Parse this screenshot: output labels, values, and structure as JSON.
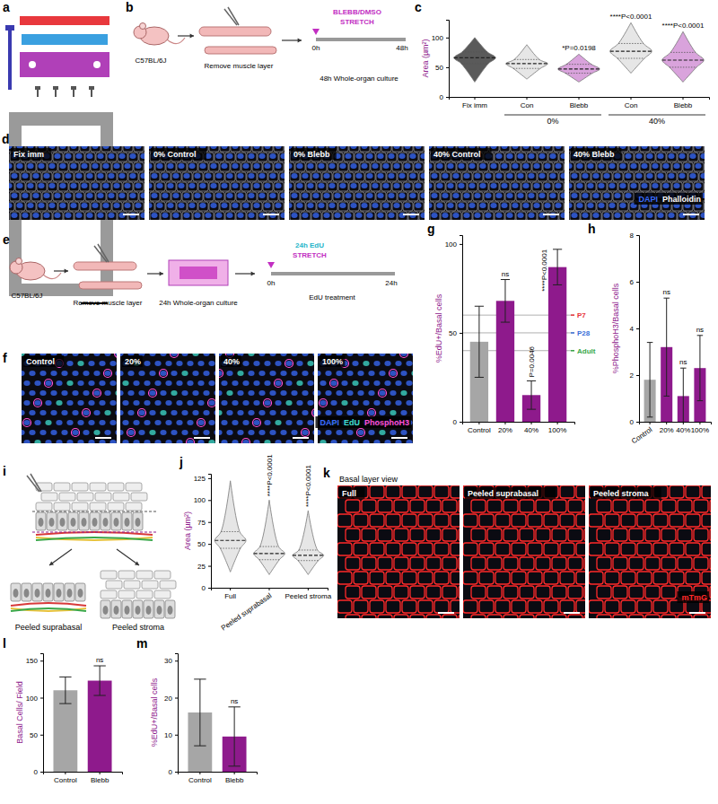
{
  "schematics": {
    "a": {
      "letter": "a"
    },
    "b": {
      "letter": "b",
      "mouse": "C57BL/6J",
      "step": "Remove muscle layer",
      "treatment": "BLEBB/DMSO",
      "stretch": "STRETCH",
      "t0": "0h",
      "t1": "48h",
      "culture": "48h Whole-organ culture"
    },
    "e": {
      "letter": "e",
      "mouse": "C57BL/6J",
      "step": "Remove muscle layer",
      "culture": "24h Whole-organ culture",
      "treatment": "24h EdU",
      "stretch": "STRETCH",
      "t0": "0h",
      "t1": "24h",
      "note": "EdU treatment"
    },
    "i": {
      "letter": "i",
      "labels": [
        "Peeled suprabasal",
        "Peeled stroma"
      ]
    }
  },
  "images": [
    {
      "letter": "d",
      "labels": [
        "Fix imm",
        "0% Control",
        "0% Blebb",
        "40% Control",
        "40% Blebb"
      ],
      "legend": [
        {
          "text": "DAPI",
          "color": "#3a6cff"
        },
        {
          "text": "Phalloidin",
          "color": "#ffffff"
        }
      ]
    },
    {
      "letter": "f",
      "labels": [
        "Control",
        "20%",
        "40%",
        "100%"
      ],
      "legend": [
        {
          "text": "DAPI",
          "color": "#3a6cff"
        },
        {
          "text": "EdU",
          "color": "#40e0d0"
        },
        {
          "text": "PhosphoH3",
          "color": "#ff4fd8"
        }
      ]
    },
    {
      "letter": "k",
      "header": "Basal layer view",
      "labels": [
        "Full",
        "Peeled suprabasal",
        "Peeled stroma"
      ],
      "legend": [
        {
          "text": "mTmG",
          "color": "#ff2a2a"
        }
      ]
    }
  ],
  "chart_data": [
    {
      "type": "violin",
      "letter": "c",
      "ylabel": "Area (µm²)",
      "categories": [
        "Fix imm",
        "Con",
        "Blebb",
        "Con",
        "Blebb"
      ],
      "group_labels": [
        null,
        "0%",
        "0%",
        "40%",
        "40%"
      ],
      "colors": [
        "#5a5a5a",
        "#e6e6e6",
        "#d9a3dc",
        "#e6e6e6",
        "#d9a3dc"
      ],
      "stats": [
        {
          "min": 25,
          "q1": 56,
          "median": 66,
          "q3": 76,
          "max": 100
        },
        {
          "min": 30,
          "q1": 48,
          "median": 56,
          "q3": 63,
          "max": 88
        },
        {
          "min": 25,
          "q1": 40,
          "median": 47,
          "q3": 55,
          "max": 72
        },
        {
          "min": 40,
          "q1": 65,
          "median": 77,
          "q3": 90,
          "max": 125
        },
        {
          "min": 25,
          "q1": 50,
          "median": 62,
          "q3": 75,
          "max": 110
        }
      ],
      "significance": [
        null,
        null,
        "*P=0.0198",
        "****P<0.0001",
        "****P<0.0001"
      ],
      "ylim": [
        0,
        130
      ],
      "yticks": [
        0,
        50,
        100
      ]
    },
    {
      "type": "bar",
      "letter": "g",
      "ylabel": "%EdU+/Basal cells",
      "categories": [
        "Control",
        "20%",
        "40%",
        "100%"
      ],
      "values": [
        45,
        68,
        15,
        87
      ],
      "errors": [
        20,
        12,
        8,
        10
      ],
      "colors": [
        "#a6a6a6",
        "#8e1a8c",
        "#8e1a8c",
        "#8e1a8c"
      ],
      "significance": [
        null,
        "ns",
        "P=0.0046",
        "****P<0.0001"
      ],
      "reference_lines": [
        {
          "name": "P7",
          "color": "#e8333a",
          "value": 60
        },
        {
          "name": "P28",
          "color": "#3a6fd8",
          "value": 50
        },
        {
          "name": "Adult",
          "color": "#3aa84a",
          "value": 40
        }
      ],
      "ylim": [
        0,
        105
      ],
      "yticks": [
        0,
        50,
        100
      ]
    },
    {
      "type": "bar",
      "letter": "h",
      "ylabel": "%PhosphoH3/Basal cells",
      "categories": [
        "Control",
        "20%",
        "40%",
        "100%"
      ],
      "values": [
        1.8,
        3.2,
        1.1,
        2.3
      ],
      "errors": [
        1.6,
        2.1,
        1.2,
        1.4
      ],
      "colors": [
        "#a6a6a6",
        "#8e1a8c",
        "#8e1a8c",
        "#8e1a8c"
      ],
      "significance": [
        null,
        "ns",
        "ns",
        "ns"
      ],
      "ylim": [
        0,
        8
      ],
      "yticks": [
        0,
        2,
        4,
        6,
        8
      ]
    },
    {
      "type": "violin",
      "letter": "j",
      "ylabel": "Area (µm²)",
      "categories": [
        "Full",
        "Peeled suprabasal",
        "Peeled stroma"
      ],
      "colors": [
        "#e6e6e6",
        "#e6e6e6",
        "#e6e6e6"
      ],
      "stats": [
        {
          "min": 18,
          "q1": 45,
          "median": 54,
          "q3": 64,
          "max": 122
        },
        {
          "min": 15,
          "q1": 32,
          "median": 39,
          "q3": 47,
          "max": 100
        },
        {
          "min": 15,
          "q1": 31,
          "median": 37,
          "q3": 43,
          "max": 88
        }
      ],
      "significance": [
        null,
        "****P<0.0001",
        "****P<0.0001"
      ],
      "ylim": [
        0,
        130
      ],
      "yticks": [
        0,
        25,
        50,
        75,
        100,
        125
      ]
    },
    {
      "type": "bar",
      "letter": "l",
      "ylabel": "Basal Cells/ Field",
      "categories": [
        "Control",
        "Blebb"
      ],
      "values": [
        110,
        123
      ],
      "errors": [
        18,
        20
      ],
      "colors": [
        "#a6a6a6",
        "#8e1a8c"
      ],
      "significance": [
        null,
        "ns"
      ],
      "ylim": [
        0,
        160
      ],
      "yticks": [
        0,
        50,
        100,
        150
      ]
    },
    {
      "type": "bar",
      "letter": "m",
      "ylabel": "%EdU+/Basal cells",
      "categories": [
        "Control",
        "Blebb"
      ],
      "values": [
        16,
        9.5
      ],
      "errors": [
        9,
        8
      ],
      "colors": [
        "#a6a6a6",
        "#8e1a8c"
      ],
      "significance": [
        null,
        "ns"
      ],
      "ylim": [
        0,
        32
      ],
      "yticks": [
        0,
        10,
        20,
        30
      ]
    }
  ]
}
